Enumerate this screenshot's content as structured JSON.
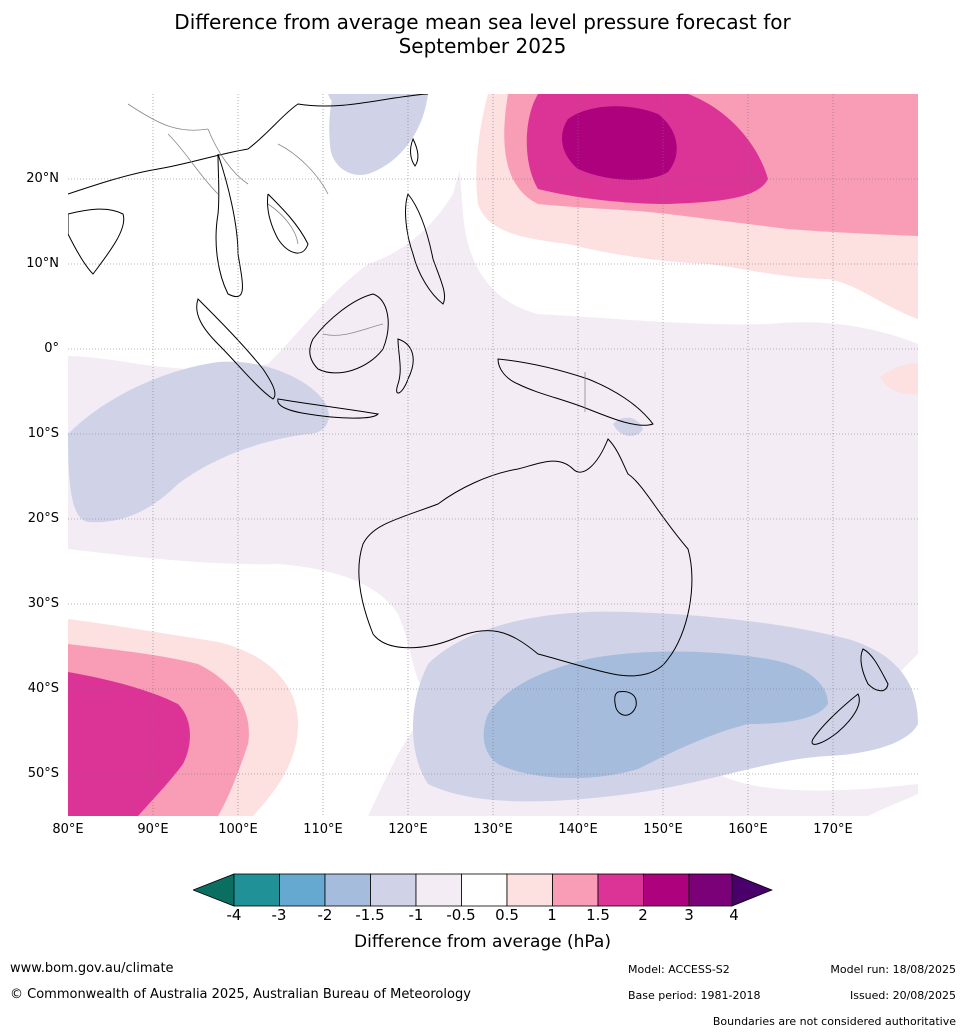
{
  "title_line1": "Difference from average mean sea level pressure forecast for",
  "title_line2": "September 2025",
  "lat_labels": [
    "20°N",
    "10°N",
    "0°",
    "10°S",
    "20°S",
    "30°S",
    "40°S",
    "50°S"
  ],
  "lon_labels": [
    "80°E",
    "90°E",
    "100°E",
    "110°E",
    "120°E",
    "130°E",
    "140°E",
    "150°E",
    "160°E",
    "170°E"
  ],
  "colorbar": {
    "colors": [
      "#0a6e60",
      "#1f9197",
      "#66a9d0",
      "#a6bcdc",
      "#d0d3e7",
      "#f3ecf5",
      "#ffffff",
      "#fde0e0",
      "#f99cb6",
      "#dc3496",
      "#ad017e",
      "#7a0177",
      "#4a006a"
    ],
    "tick_labels": [
      "-4",
      "-3",
      "-2",
      "-1.5",
      "-1",
      "-0.5",
      "0.5",
      "1",
      "1.5",
      "2",
      "3",
      "4"
    ],
    "title": "Difference from average (hPa)"
  },
  "footer": {
    "website": "www.bom.gov.au/climate",
    "copyright": "© Commonwealth of Australia 2025, Australian Bureau of Meteorology",
    "model": "Model: ACCESS-S2",
    "model_run": "Model run: 18/08/2025",
    "base_period": "Base period: 1981-2018",
    "issued": "Issued: 20/08/2025",
    "disclaimer": "Boundaries are not considered authoritative"
  }
}
